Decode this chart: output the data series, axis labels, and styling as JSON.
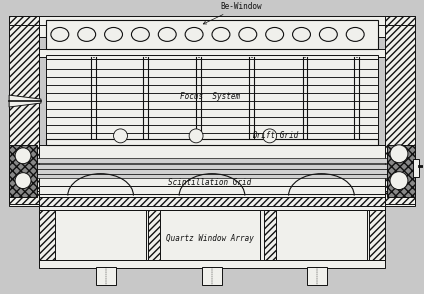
{
  "bg_color": "#c8c8c8",
  "line_color": "#111111",
  "white": "#f0f0ec",
  "gray": "#999999",
  "labels": {
    "be_window": "Be-Window",
    "focus_system": "Focus  System",
    "drift_grid": "Drift Grid",
    "scintillation_grid": "Scintillation Grid",
    "quartz_window": "Quartz Window Array"
  }
}
